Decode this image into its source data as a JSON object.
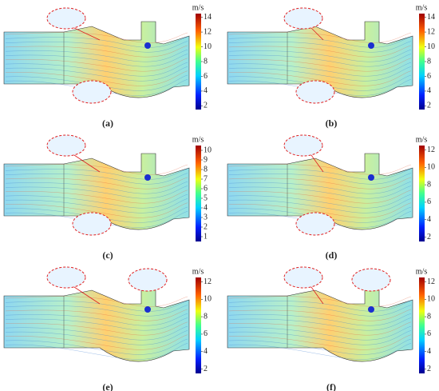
{
  "panels": [
    {
      "label": "(a)",
      "colorbar": {
        "unit": "m/s",
        "range": [
          1.5,
          14.5
        ],
        "ticks": [
          2,
          4,
          6,
          8,
          10,
          12,
          14
        ]
      }
    },
    {
      "label": "(b)",
      "colorbar": {
        "unit": "m/s",
        "range": [
          1.5,
          14.5
        ],
        "ticks": [
          2,
          4,
          6,
          8,
          10,
          12,
          14
        ]
      }
    },
    {
      "label": "(c)",
      "colorbar": {
        "unit": "m/s",
        "range": [
          0.5,
          10.5
        ],
        "ticks": [
          1,
          2,
          3,
          4,
          5,
          6,
          7,
          8,
          9,
          10
        ]
      }
    },
    {
      "label": "(d)",
      "colorbar": {
        "unit": "m/s",
        "range": [
          1.5,
          12.5
        ],
        "ticks": [
          2,
          4,
          6,
          8,
          10,
          12
        ]
      }
    },
    {
      "label": "(e)",
      "colorbar": {
        "unit": "m/s",
        "range": [
          1.5,
          12.5
        ],
        "ticks": [
          2,
          4,
          6,
          8,
          10,
          12
        ]
      }
    },
    {
      "label": "(f)",
      "colorbar": {
        "unit": "m/s",
        "range": [
          1.5,
          12.5
        ],
        "ticks": [
          2,
          4,
          6,
          8,
          10,
          12
        ]
      }
    }
  ]
}
